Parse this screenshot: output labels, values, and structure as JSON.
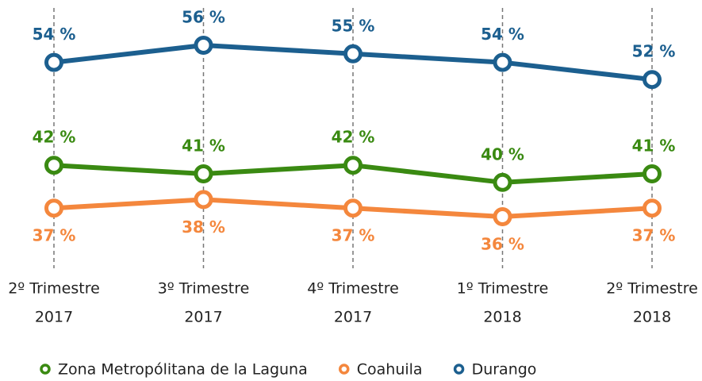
{
  "chart_data": {
    "type": "line",
    "categories": [
      [
        "2º Trimestre",
        "2017"
      ],
      [
        "3º Trimestre",
        "2017"
      ],
      [
        "4º Trimestre",
        "2017"
      ],
      [
        "1º Trimestre",
        "2018"
      ],
      [
        "2º Trimestre",
        "2018"
      ]
    ],
    "series": [
      {
        "name": "Zona Metropólitana de la Laguna",
        "color": "#3a8a12",
        "values": [
          42,
          41,
          42,
          40,
          41
        ],
        "value_labels": [
          "42 %",
          "41 %",
          "42 %",
          "40 %",
          "41 %"
        ]
      },
      {
        "name": "Coahuila",
        "color": "#f4873d",
        "values": [
          37,
          38,
          37,
          36,
          37
        ],
        "value_labels": [
          "37 %",
          "38 %",
          "37 %",
          "36 %",
          "37 %"
        ]
      },
      {
        "name": "Durango",
        "color": "#1c5f8f",
        "values": [
          54,
          56,
          55,
          54,
          52
        ],
        "value_labels": [
          "54 %",
          "56 %",
          "55 %",
          "54 %",
          "52 %"
        ]
      }
    ],
    "legend": "bottom"
  }
}
